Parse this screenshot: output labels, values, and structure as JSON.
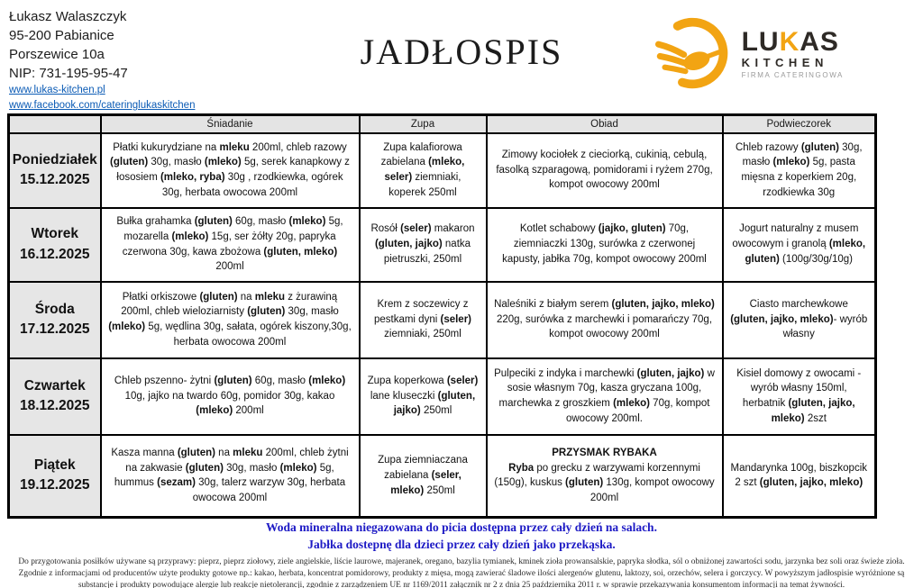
{
  "header": {
    "contact": {
      "name": "Łukasz Walaszczyk",
      "postal_city": "95-200 Pabianice",
      "street": "Porszewice 10a",
      "nip": "NIP: 731-195-95-47",
      "website": "www.lukas-kitchen.pl",
      "facebook": "www.facebook.com/cateringlukaskitchen"
    },
    "title": "JADŁOSPIS",
    "logo": {
      "word_part1": "LU",
      "word_accent": "K",
      "word_part2": "AS",
      "line2": "KITCHEN",
      "line3": "FIRMA CATERINGOWA",
      "accent_color": "#F2A413"
    }
  },
  "table": {
    "columns": [
      "",
      "Śniadanie",
      "Zupa",
      "Obiad",
      "Podwieczorek"
    ],
    "rows": [
      {
        "day": "Poniedziałek",
        "date": "15.12.2025",
        "breakfast": "Płatki kukurydziane na **mleku** 200ml, chleb razowy **(gluten)** 30g, masło **(mleko)** 5g, serek kanapkowy z łososiem **(mleko, ryba)**  30g , rzodkiewka, ogórek 30g, herbata owocowa 200ml",
        "soup": "Zupa kalafiorowa zabielana **(mleko, seler)** ziemniaki, koperek 250ml",
        "dinner": "Zimowy kociołek z cieciorką, cukinią, cebulą, fasolką szparagową, pomidorami i ryżem 270g, kompot owocowy 200ml",
        "snack": "Chleb razowy **(gluten)** 30g, masło **(mleko)** 5g, pasta mięsna z koperkiem 20g, rzodkiewka 30g"
      },
      {
        "day": "Wtorek",
        "date": "16.12.2025",
        "breakfast": "Bułka grahamka **(gluten)** 60g, masło **(mleko)** 5g, mozarella **(mleko)** 15g,  ser żółty 20g, papryka czerwona 30g, kawa zbożowa **(gluten, mleko)** 200ml",
        "soup": "Rosół **(seler)** makaron **(gluten, jajko)** natka pietruszki, 250ml",
        "dinner": "Kotlet schabowy **(jajko, gluten)** 70g, ziemniaczki 130g, surówka z czerwonej kapusty, jabłka 70g, kompot owocowy 200ml",
        "snack": "Jogurt naturalny z musem owocowym i granolą **(mleko, gluten)** (100g/30g/10g)"
      },
      {
        "day": "Środa",
        "date": "17.12.2025",
        "breakfast": "Płatki orkiszowe **(gluten)** na  **mleku** z żurawiną 200ml, chleb wieloziarnisty **(gluten)** 30g, masło **(mleko)** 5g, wędlina 30g, sałata, ogórek kiszony,30g, herbata owocowa 200ml",
        "soup": "Krem z soczewicy z pestkami dyni **(seler)** ziemniaki, 250ml",
        "dinner": "Naleśniki z białym serem **(gluten, jajko, mleko)** 220g, surówka z marchewki i pomarańczy 70g, kompot owocowy 200ml",
        "snack": "Ciasto marchewkowe **(gluten, jajko, mleko)**- wyrób własny"
      },
      {
        "day": "Czwartek",
        "date": "18.12.2025",
        "breakfast": "Chleb pszenno- żytni **(gluten)** 60g, masło **(mleko)** 10g, jajko na twardo 60g, pomidor 30g, kakao **(mleko)** 200ml",
        "soup": "Zupa koperkowa **(seler)** lane kluseczki **(gluten, jajko)** 250ml",
        "dinner": "Pulpeciki z indyka i marchewki  **(gluten, jajko)** w sosie własnym 70g, kasza gryczana 100g, marchewka z groszkiem **(mleko)**  70g, kompot owocowy 200ml.",
        "snack": "Kisiel domowy z owocami - wyrób własny  150ml, herbatnik **(gluten, jajko, mleko)**  2szt"
      },
      {
        "day": "Piątek",
        "date": "19.12.2025",
        "breakfast": "Kasza manna **(gluten)**  na **mleku** 200ml, chleb żytni na zakwasie **(gluten)** 30g, masło **(mleko)** 5g, hummus **(sezam)** 30g, talerz warzyw 30g, herbata owocowa 200ml",
        "soup": "Zupa ziemniaczana zabielana **(seler, mleko)** 250ml",
        "dinner": "**PRZYSMAK RYBAKA**\n**Ryba** po grecku z warzywami korzennymi (150g), kuskus **(gluten)** 130g, kompot owocowy 200ml",
        "snack": "Mandarynka 100g, biszkopcik 2 szt **(gluten, jajko, mleko)**"
      }
    ]
  },
  "notes": {
    "line1": "Woda mineralna niegazowana do picia dostępna przez cały dzień na salach.",
    "line2": "Jabłka dostepnę dla dzieci przez cały dzień jako przekąska.",
    "color": "#1d1ac5"
  },
  "footer": {
    "text": "Do przygotowania posiłków używane są przyprawy: pieprz, pieprz ziołowy, ziele angielskie, liście laurowe, majeranek, oregano, bazylia tymianek, kminek zioła prowansalskie, papryka słodka, sól o obniżonej zawartości sodu, jarzynka bez soli oraz świeże zioła. Zgodnie z informacjami od producentów użyte produkty gotowe np.: kakao, herbata, koncentrat pomidorowy, produkty z mięsa, mogą zawierać śladowe ilości alergenów glutenu, laktozy, soi, orzechów,   selera i gorczycy. W powyższym jadłospisie wyróżnione są substancje i produkty powodujące alergie lub reakcje nietolerancji, zgodnie z zarządzeniem UE nr 1169/2011 załącznik nr 2 z dnia 25 października 2011 r. w sprawie przekazywania konsumentom informacji na temat żywności."
  }
}
